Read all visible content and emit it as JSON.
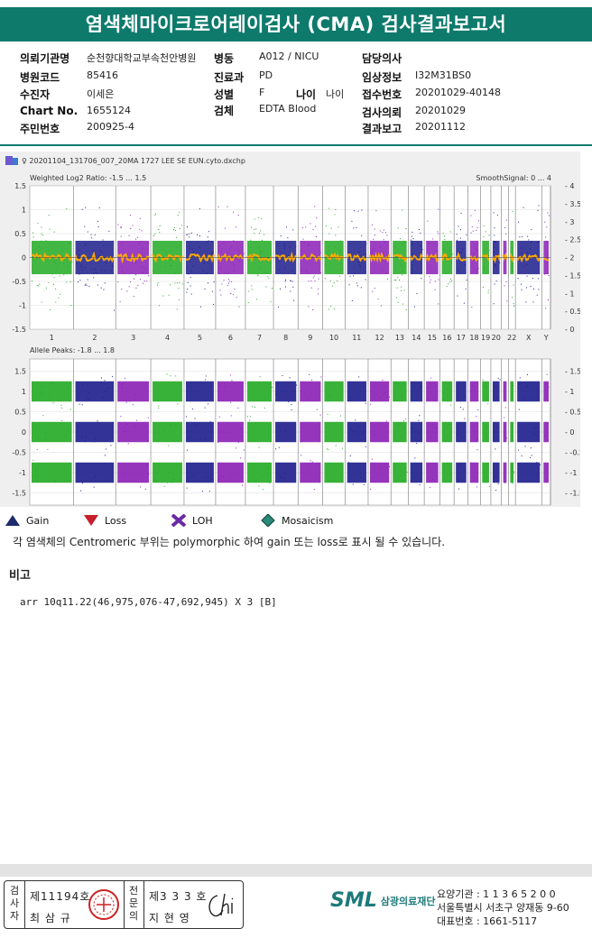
{
  "report": {
    "title": "염색체마이크로어레이검사 (CMA) 검사결과보고서"
  },
  "info": {
    "institution_label": "의뢰기관명",
    "institution_value": "순천향대학교부속천안병원",
    "ward_label": "병동",
    "ward_value": "A012 / NICU",
    "doctor_label": "담당의사",
    "doctor_value": "",
    "hospcode_label": "병원코드",
    "hospcode_value": "85416",
    "dept_label": "진료과",
    "dept_value": "PD",
    "clinical_label": "임상정보",
    "clinical_value": "I32M31BS0",
    "patient_label": "수진자",
    "patient_value": "이세은",
    "sex_label": "성별",
    "sex_value": "F",
    "age_label": "나이",
    "age_value": "나이",
    "receipt_label": "접수번호",
    "receipt_value": "20201029-40148",
    "chart_label": "Chart No.",
    "chart_value": "1655124",
    "specimen_label": "검체",
    "specimen_value": "EDTA Blood",
    "request_label": "검사의뢰",
    "request_value": "20201029",
    "ssn_label": "주민번호",
    "ssn_value": "200925-4",
    "result_label": "결과보고",
    "result_value": "20201112"
  },
  "chart_data": [
    {
      "type": "scatter",
      "file_name": "20201104_131706_007_20MA 1727 LEE SE EUN.cyto.dxchp",
      "title": "Weighted Log2 Ratio: -1.5 ... 1.5",
      "right_title": "SmoothSignal: 0 ... 4",
      "ylim": [
        -1.5,
        1.5
      ],
      "y2lim": [
        0,
        4
      ],
      "y_ticks": [
        "1.5",
        "1",
        "0.5",
        "0",
        "-0.5",
        "-1",
        "-1.5"
      ],
      "y2_ticks": [
        "4",
        "3.5",
        "3",
        "2.5",
        "2",
        "1.5",
        "1",
        "0.5",
        "0"
      ],
      "chromosomes": [
        "1",
        "2",
        "3",
        "4",
        "5",
        "6",
        "7",
        "8",
        "9",
        "10",
        "11",
        "12",
        "13",
        "14",
        "15",
        "16",
        "17",
        "18",
        "19",
        "20",
        "21",
        "22",
        "X",
        "Y"
      ],
      "chromosome_labels": [
        "1",
        "2",
        "3",
        "4",
        "5",
        "6",
        "7",
        "8",
        "9",
        "10",
        "11",
        "12",
        "13",
        "14",
        "15",
        "16",
        "17",
        "18",
        "19",
        "20",
        "22",
        "X",
        "Y"
      ],
      "series_colors": [
        "#22aa22",
        "#1c1c8c",
        "#8a1fb5"
      ],
      "smooth_signal_color": "#ffaa00",
      "log2_ratio_baseline": 0,
      "smooth_signal_baseline": 2
    },
    {
      "type": "scatter",
      "title": "Allele Peaks: -1.8 ... 1.8",
      "ylim": [
        -1.8,
        1.8
      ],
      "y_ticks": [
        "1.5",
        "1",
        "0.5",
        "0",
        "-0.5",
        "-1",
        "-1.5"
      ],
      "peak_values": [
        1,
        0,
        -1
      ]
    }
  ],
  "legend": {
    "gain": "Gain",
    "loss": "Loss",
    "loh": "LOH",
    "mosaicism": "Mosaicism",
    "gain_color": "#1c2a6e",
    "loss_color": "#c81e2a",
    "loh_color": "#6a2aa8",
    "mosaicism_color": "#2a8a7a"
  },
  "note": "각 염색체의 Centromeric 부위는 polymorphic 하여 gain 또는 loss로 표시 될 수 있습니다.",
  "remarks": {
    "title": "비고",
    "text": "arr 10q11.22(46,975,076-47,692,945) X 3 [B]"
  },
  "signature": {
    "examiner_label": "검사자",
    "examiner_no": "제11194호",
    "examiner_name": "최 삼 규",
    "specialist_label": "전문의",
    "specialist_no": "제3 3 3 호",
    "specialist_name": "지 현 영"
  },
  "footer": {
    "logo_mark": "SML",
    "logo_name": "삼광의료재단",
    "line1": "요양기관 : 1 1 3 6 5 2 0 0",
    "line2": "서울특별시 서초구 양재동 9-60",
    "line3": "대표번호 : 1661-5117"
  }
}
